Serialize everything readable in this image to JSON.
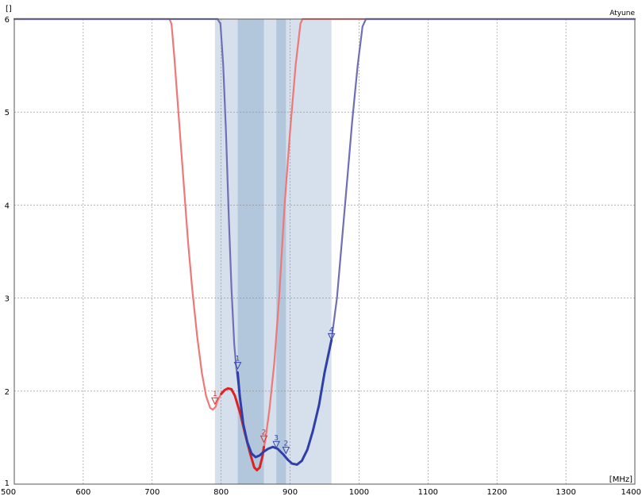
{
  "chart_data": {
    "type": "line",
    "title": "Atyune",
    "ylabel": "[]",
    "xlabel": "[MHz]",
    "xlim": [
      500,
      1400
    ],
    "ylim": [
      1,
      6
    ],
    "x_ticks": [
      "500",
      "600",
      "700",
      "800",
      "900",
      "1000",
      "1100",
      "1200",
      "1300",
      "1400"
    ],
    "y_ticks": [
      "1",
      "2",
      "3",
      "4",
      "5",
      "6"
    ],
    "grid": true,
    "bands": [
      {
        "from": 791,
        "to": 960,
        "color": "#d5e0ec"
      },
      {
        "from": 824,
        "to": 862,
        "color": "#b2c7dc"
      },
      {
        "from": 880,
        "to": 894,
        "color": "#b2c7dc"
      }
    ],
    "series": [
      {
        "color": "#ee7777",
        "light": true,
        "points": [
          [
            500,
            6
          ],
          [
            725,
            6
          ],
          [
            728,
            5.95
          ],
          [
            732,
            5.6
          ],
          [
            738,
            5.0
          ],
          [
            745,
            4.3
          ],
          [
            752,
            3.6
          ],
          [
            758,
            3.1
          ],
          [
            765,
            2.6
          ],
          [
            772,
            2.2
          ],
          [
            778,
            1.95
          ],
          [
            784,
            1.82
          ],
          [
            788,
            1.8
          ],
          [
            792,
            1.83
          ],
          [
            795,
            1.9
          ],
          [
            800,
            1.97
          ],
          [
            805,
            2.01
          ],
          [
            810,
            2.03
          ],
          [
            815,
            2.02
          ],
          [
            820,
            1.95
          ],
          [
            828,
            1.75
          ],
          [
            835,
            1.53
          ],
          [
            842,
            1.33
          ],
          [
            848,
            1.18
          ],
          [
            852,
            1.15
          ],
          [
            856,
            1.18
          ],
          [
            860,
            1.3
          ],
          [
            864,
            1.47
          ],
          [
            870,
            1.8
          ],
          [
            877,
            2.3
          ],
          [
            884,
            3.0
          ],
          [
            892,
            4.0
          ],
          [
            900,
            4.8
          ],
          [
            908,
            5.5
          ],
          [
            915,
            5.95
          ],
          [
            918,
            6
          ],
          [
            1400,
            6
          ]
        ]
      },
      {
        "color": "#dd2222",
        "light": false,
        "points": [
          [
            800,
            1.97
          ],
          [
            805,
            2.01
          ],
          [
            810,
            2.03
          ],
          [
            815,
            2.02
          ],
          [
            820,
            1.95
          ],
          [
            828,
            1.75
          ],
          [
            835,
            1.53
          ],
          [
            842,
            1.33
          ],
          [
            848,
            1.18
          ],
          [
            852,
            1.15
          ],
          [
            856,
            1.18
          ],
          [
            860,
            1.3
          ],
          [
            862,
            1.4
          ]
        ]
      },
      {
        "color": "#6f6fb5",
        "light": true,
        "points": [
          [
            500,
            6
          ],
          [
            795,
            6
          ],
          [
            799,
            5.95
          ],
          [
            803,
            5.5
          ],
          [
            807,
            4.8
          ],
          [
            811,
            3.9
          ],
          [
            815,
            3.1
          ],
          [
            819,
            2.5
          ],
          [
            822,
            2.25
          ],
          [
            827,
            1.95
          ],
          [
            832,
            1.65
          ],
          [
            838,
            1.45
          ],
          [
            844,
            1.33
          ],
          [
            850,
            1.29
          ],
          [
            856,
            1.31
          ],
          [
            862,
            1.35
          ],
          [
            868,
            1.38
          ],
          [
            875,
            1.4
          ],
          [
            882,
            1.38
          ],
          [
            890,
            1.32
          ],
          [
            897,
            1.26
          ],
          [
            903,
            1.22
          ],
          [
            910,
            1.21
          ],
          [
            917,
            1.25
          ],
          [
            925,
            1.37
          ],
          [
            933,
            1.57
          ],
          [
            942,
            1.85
          ],
          [
            950,
            2.2
          ],
          [
            960,
            2.55
          ],
          [
            968,
            3.0
          ],
          [
            975,
            3.6
          ],
          [
            982,
            4.2
          ],
          [
            990,
            4.9
          ],
          [
            998,
            5.5
          ],
          [
            1005,
            5.92
          ],
          [
            1010,
            6
          ],
          [
            1400,
            6
          ]
        ]
      },
      {
        "color": "#2f3fa8",
        "light": false,
        "points": [
          [
            824,
            2.2
          ],
          [
            827,
            1.95
          ],
          [
            832,
            1.65
          ],
          [
            838,
            1.45
          ],
          [
            844,
            1.33
          ],
          [
            850,
            1.29
          ],
          [
            856,
            1.31
          ],
          [
            862,
            1.35
          ],
          [
            868,
            1.38
          ],
          [
            875,
            1.4
          ],
          [
            882,
            1.38
          ],
          [
            890,
            1.32
          ],
          [
            897,
            1.26
          ],
          [
            903,
            1.22
          ],
          [
            910,
            1.21
          ],
          [
            917,
            1.25
          ],
          [
            925,
            1.37
          ],
          [
            933,
            1.57
          ],
          [
            942,
            1.85
          ],
          [
            950,
            2.2
          ],
          [
            960,
            2.55
          ]
        ]
      }
    ],
    "markers": [
      {
        "label": "1",
        "x": 791,
        "y": 1.86,
        "color": "#dd3333"
      },
      {
        "label": "2",
        "x": 862,
        "y": 1.45,
        "color": "#dd3333"
      },
      {
        "label": "1",
        "x": 824,
        "y": 2.24,
        "color": "#3344aa"
      },
      {
        "label": "3",
        "x": 880,
        "y": 1.39,
        "color": "#3344aa"
      },
      {
        "label": "2",
        "x": 894,
        "y": 1.33,
        "color": "#3344aa"
      },
      {
        "label": "4",
        "x": 960,
        "y": 2.55,
        "color": "#3344aa"
      }
    ]
  }
}
